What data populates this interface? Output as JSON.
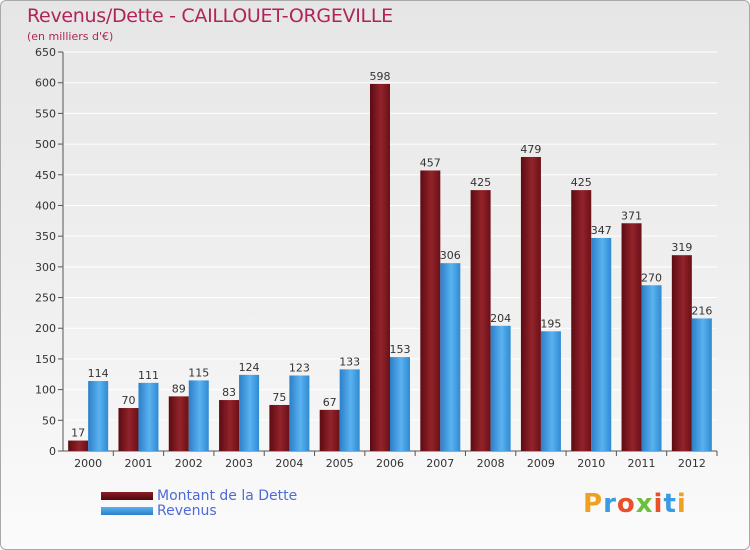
{
  "chart_data": {
    "type": "bar",
    "title": "Revenus/Dette - CAILLOUET-ORGEVILLE",
    "subtitle": "(en milliers d'€)",
    "categories": [
      "2000",
      "2001",
      "2002",
      "2003",
      "2004",
      "2005",
      "2006",
      "2007",
      "2008",
      "2009",
      "2010",
      "2011",
      "2012"
    ],
    "series": [
      {
        "name": "Montant de la Dette",
        "color": "#8b1c24",
        "values": [
          17,
          70,
          89,
          83,
          75,
          67,
          598,
          457,
          425,
          479,
          425,
          371,
          319
        ]
      },
      {
        "name": "Revenus",
        "color": "#3a9be0",
        "values": [
          114,
          111,
          115,
          124,
          123,
          133,
          153,
          306,
          204,
          195,
          347,
          270,
          216
        ]
      }
    ],
    "ylim": [
      0,
      650
    ],
    "yticks": [
      0,
      50,
      100,
      150,
      200,
      250,
      300,
      350,
      400,
      450,
      500,
      550,
      600,
      650
    ],
    "grid": true,
    "legend": "bottom-left"
  },
  "logo": {
    "text": "Proxiti"
  }
}
